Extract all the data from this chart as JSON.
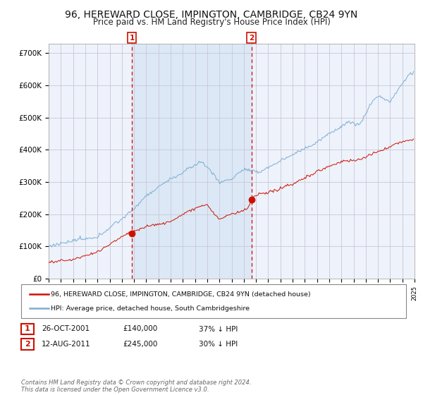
{
  "title": "96, HEREWARD CLOSE, IMPINGTON, CAMBRIDGE, CB24 9YN",
  "subtitle": "Price paid vs. HM Land Registry's House Price Index (HPI)",
  "title_fontsize": 10,
  "subtitle_fontsize": 8.5,
  "background_color": "#ffffff",
  "plot_bg_color": "#eef2fb",
  "grid_color": "#c8c8d8",
  "hpi_line_color": "#7aadd4",
  "price_line_color": "#cc1100",
  "marker_color": "#cc1100",
  "vline_color": "#dd0000",
  "shade_color": "#dce8f5",
  "ylim": [
    0,
    730000
  ],
  "yticks": [
    0,
    100000,
    200000,
    300000,
    400000,
    500000,
    600000,
    700000
  ],
  "ytick_labels": [
    "£0",
    "£100K",
    "£200K",
    "£300K",
    "£400K",
    "£500K",
    "£600K",
    "£700K"
  ],
  "x_start_year": 1995,
  "x_end_year": 2025,
  "sale1_year": 2001.82,
  "sale1_price": 140000,
  "sale2_year": 2011.62,
  "sale2_price": 245000,
  "legend_price_label": "96, HEREWARD CLOSE, IMPINGTON, CAMBRIDGE, CB24 9YN (detached house)",
  "legend_hpi_label": "HPI: Average price, detached house, South Cambridgeshire",
  "annotation1_date": "26-OCT-2001",
  "annotation1_price": "£140,000",
  "annotation1_pct": "37% ↓ HPI",
  "annotation2_date": "12-AUG-2011",
  "annotation2_price": "£245,000",
  "annotation2_pct": "30% ↓ HPI",
  "footer": "Contains HM Land Registry data © Crown copyright and database right 2024.\nThis data is licensed under the Open Government Licence v3.0."
}
